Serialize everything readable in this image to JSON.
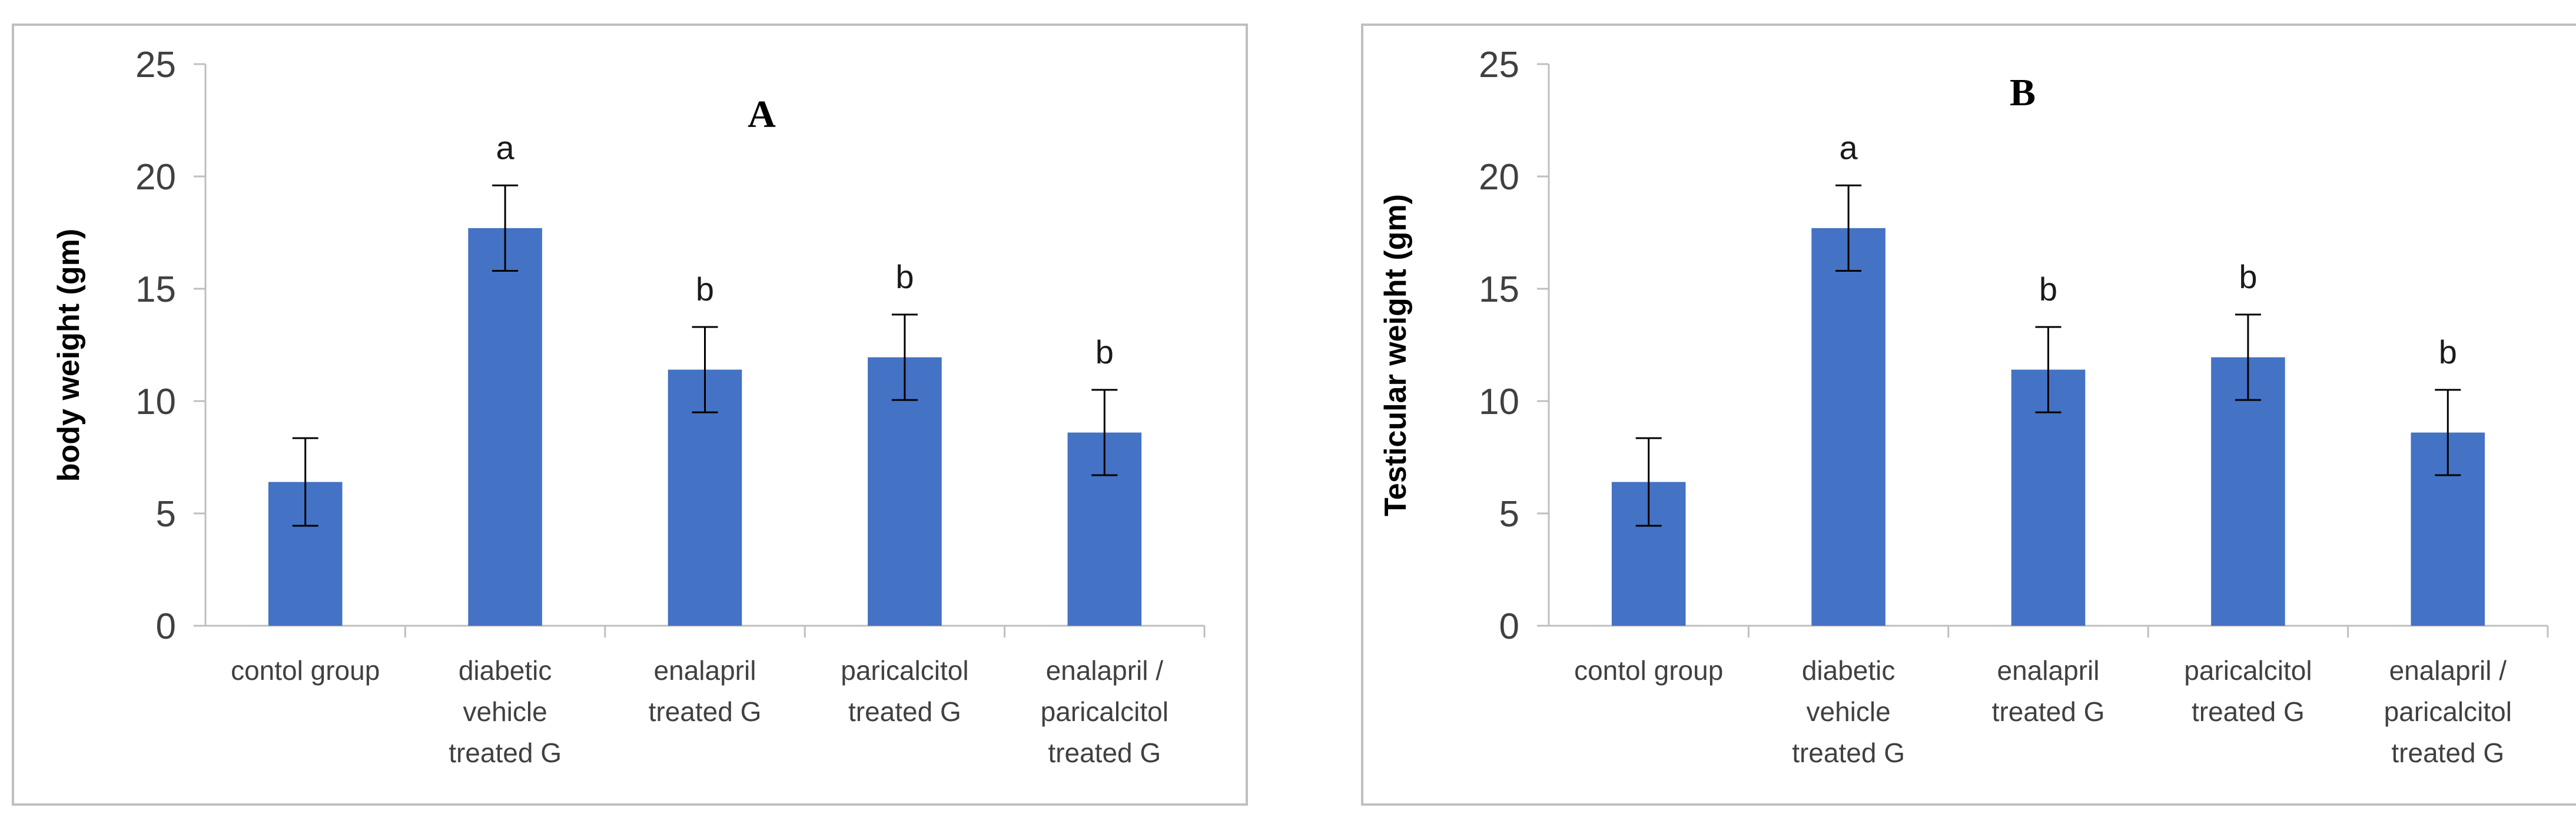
{
  "chart_data": [
    {
      "type": "bar",
      "title": "A",
      "xlabel": "",
      "ylabel": "body weight (gm)",
      "ylim": [
        0,
        25
      ],
      "yticks": [
        0,
        5,
        10,
        15,
        20,
        25
      ],
      "categories": [
        [
          "contol group"
        ],
        [
          "diabetic",
          "vehicle",
          "treated G"
        ],
        [
          "enalapril",
          "treated G"
        ],
        [
          "paricalcitol",
          "treated G"
        ],
        [
          "enalapril /",
          "paricalcitol",
          "treated G"
        ]
      ],
      "values": [
        6.4,
        17.7,
        11.4,
        11.95,
        8.6
      ],
      "errors": [
        1.95,
        1.9,
        1.9,
        1.9,
        1.9
      ],
      "significance": [
        "",
        "a",
        "b",
        "b",
        "b"
      ],
      "bar_color": "#4472C4",
      "grid": false,
      "legend": "none"
    },
    {
      "type": "bar",
      "title": "B",
      "xlabel": "",
      "ylabel": "Testicular weight (gm)",
      "ylim": [
        0,
        25
      ],
      "yticks": [
        0,
        5,
        10,
        15,
        20,
        25
      ],
      "categories": [
        [
          "contol group"
        ],
        [
          "diabetic",
          "vehicle",
          "treated G"
        ],
        [
          "enalapril",
          "treated G"
        ],
        [
          "paricalcitol",
          "treated G"
        ],
        [
          "enalapril /",
          "paricalcitol",
          "treated G"
        ]
      ],
      "values": [
        6.4,
        17.7,
        11.4,
        11.95,
        8.6
      ],
      "errors": [
        1.95,
        1.9,
        1.9,
        1.9,
        1.9
      ],
      "significance": [
        "",
        "a",
        "b",
        "b",
        "b"
      ],
      "bar_color": "#4472C4",
      "grid": false,
      "legend": "none"
    }
  ]
}
